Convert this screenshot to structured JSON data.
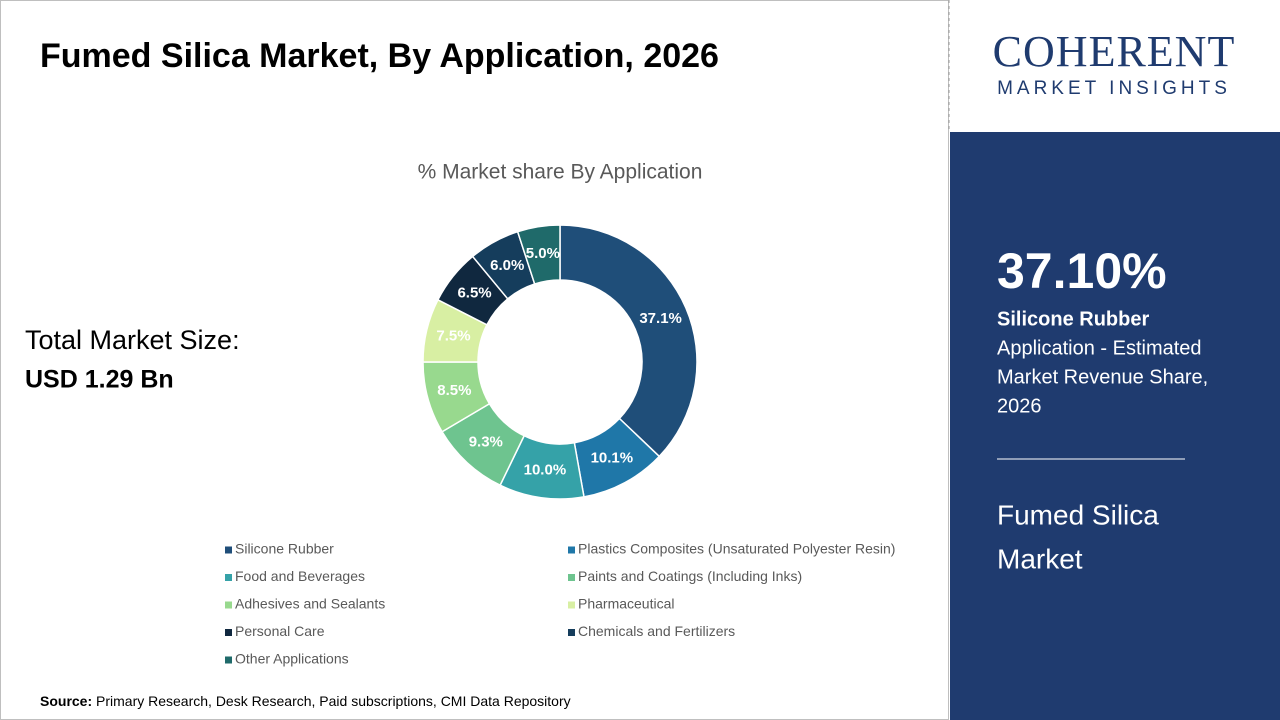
{
  "chart_data": {
    "type": "donut",
    "title": "% Market share By Application",
    "categories": [
      "Silicone Rubber",
      "Plastics Composites (Unsaturated Polyester Resin)",
      "Food and Beverages",
      "Paints and Coatings (Including Inks)",
      "Adhesives and Sealants",
      "Pharmaceutical",
      "Personal Care",
      "Chemicals and Fertilizers",
      "Other Applications"
    ],
    "values": [
      37.1,
      10.1,
      10.0,
      9.3,
      8.5,
      7.5,
      6.5,
      6.0,
      5.0
    ],
    "value_labels": [
      "37.1%",
      "10.1%",
      "10.0%",
      "9.3%",
      "8.5%",
      "7.5%",
      "6.5%",
      "6.0%",
      "5.0%"
    ],
    "colors": [
      "#1f4e79",
      "#1f77a8",
      "#35a2a8",
      "#6ec48f",
      "#98d98e",
      "#d8efa3",
      "#10283f",
      "#153d5c",
      "#1f6a6a"
    ]
  },
  "header": {
    "title": "Fumed Silica Market, By Application, 2026"
  },
  "market_size": {
    "label": "Total Market Size:",
    "value": "USD 1.29 Bn"
  },
  "source": {
    "label": "Source:",
    "text": "Primary Research, Desk Research, Paid subscriptions, CMI Data Repository"
  },
  "logo": {
    "name": "COHERENT",
    "tagline": "MARKET INSIGHTS"
  },
  "sidebar": {
    "highlight": "37.10%",
    "segment": "Silicone Rubber",
    "description": [
      "Application - Estimated",
      "Market Revenue Share,",
      "2026"
    ],
    "market": [
      "Fumed Silica",
      "Market"
    ]
  }
}
